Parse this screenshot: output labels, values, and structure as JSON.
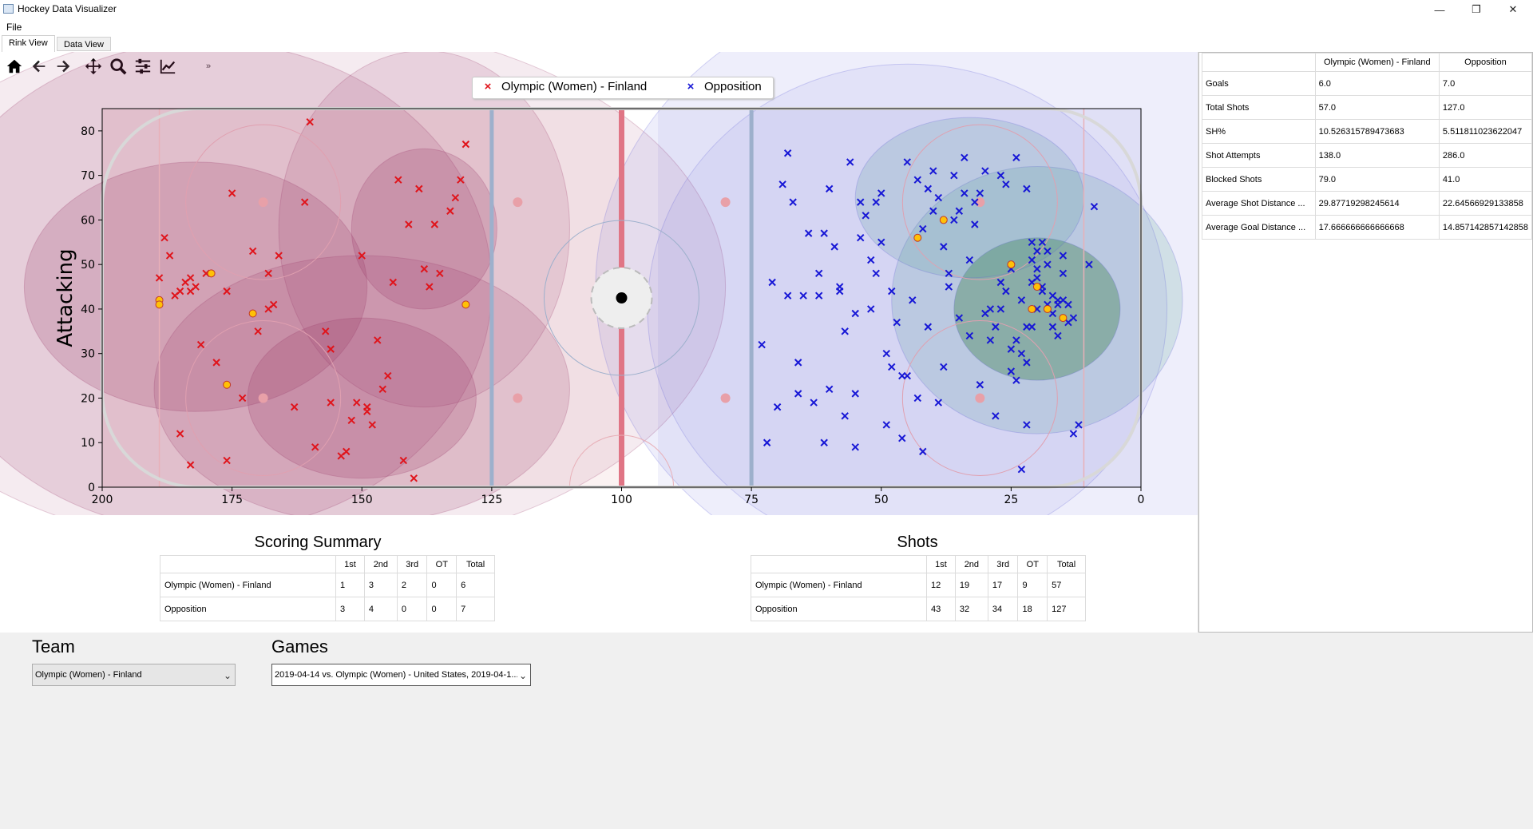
{
  "window": {
    "title": "Hockey Data Visualizer",
    "minimize": "—",
    "restore": "❐",
    "close": "✕"
  },
  "menu": {
    "file": "File"
  },
  "tabs": [
    {
      "label": "Rink View"
    },
    {
      "label": "Data View"
    }
  ],
  "toolbar": {
    "more": "»"
  },
  "legend": {
    "team": "Olympic (Women) - Finland",
    "opposition": "Opposition"
  },
  "colors": {
    "team": "#e0141b",
    "opposition": "#1717d6",
    "goal": "#ffc107"
  },
  "chart_data": {
    "type": "scatter",
    "ylabel": "Attacking",
    "xlabel": "",
    "xlim": [
      200,
      0
    ],
    "ylim": [
      0,
      85
    ],
    "x_ticks": [
      "200",
      "175",
      "150",
      "125",
      "100",
      "75",
      "50",
      "25",
      "0"
    ],
    "y_ticks": [
      "0",
      "10",
      "20",
      "30",
      "40",
      "50",
      "60",
      "70",
      "80"
    ],
    "series": [
      {
        "name": "Olympic (Women) - Finland",
        "color": "#e0141b",
        "x": [
          189,
          187,
          185,
          188,
          186,
          183,
          184,
          183,
          182,
          181,
          180,
          178,
          176,
          175,
          173,
          171,
          170,
          168,
          168,
          167,
          166,
          163,
          161,
          160,
          159,
          157,
          156,
          156,
          154,
          153,
          152,
          151,
          150,
          149,
          149,
          148,
          147,
          146,
          145,
          144,
          143,
          142,
          141,
          140,
          139,
          138,
          137,
          136,
          135,
          133,
          132,
          131,
          130,
          176,
          185,
          183
        ],
        "y": [
          47,
          52,
          44,
          56,
          43,
          47,
          46,
          44,
          45,
          32,
          48,
          28,
          44,
          66,
          20,
          53,
          35,
          48,
          40,
          41,
          52,
          18,
          64,
          82,
          9,
          35,
          31,
          19,
          7,
          8,
          15,
          19,
          52,
          17,
          18,
          14,
          33,
          22,
          25,
          46,
          69,
          6,
          59,
          2,
          67,
          49,
          45,
          59,
          48,
          62,
          65,
          69,
          77,
          6,
          12,
          5
        ],
        "goals": {
          "x": [
            189,
            189,
            179,
            171,
            176,
            130
          ],
          "y": [
            42,
            41,
            48,
            39,
            23,
            41
          ]
        }
      },
      {
        "name": "Opposition",
        "color": "#1717d6",
        "x": [
          70,
          66,
          68,
          72,
          62,
          60,
          61,
          58,
          57,
          55,
          55,
          54,
          52,
          51,
          50,
          49,
          48,
          46,
          45,
          43,
          42,
          41,
          40,
          39,
          38,
          37,
          36,
          35,
          34,
          33,
          32,
          31,
          30,
          29,
          28,
          27,
          26,
          25,
          24,
          23,
          22,
          21,
          20,
          19,
          18,
          17,
          16,
          15,
          14,
          13,
          12,
          10,
          9,
          24,
          22,
          21,
          20,
          19,
          18,
          17,
          16,
          15,
          14,
          13,
          20,
          21,
          22,
          23,
          24,
          25,
          26,
          27,
          28,
          29,
          30,
          31,
          32,
          33,
          34,
          35,
          36,
          37,
          38,
          39,
          40,
          41,
          42,
          43,
          44,
          45,
          46,
          47,
          48,
          49,
          50,
          51,
          52,
          53,
          54,
          55,
          56,
          57,
          58,
          59,
          60,
          61,
          62,
          63,
          64,
          65,
          66,
          67,
          68,
          69,
          71,
          73,
          20,
          18,
          16,
          19,
          17,
          21,
          15,
          22,
          23,
          25,
          27
        ],
        "y": [
          18,
          21,
          43,
          10,
          43,
          22,
          57,
          44,
          16,
          39,
          9,
          56,
          40,
          64,
          55,
          14,
          44,
          25,
          73,
          20,
          8,
          36,
          62,
          19,
          27,
          45,
          60,
          38,
          66,
          34,
          64,
          23,
          71,
          40,
          16,
          70,
          68,
          49,
          33,
          30,
          36,
          51,
          47,
          44,
          50,
          39,
          42,
          52,
          41,
          38,
          14,
          50,
          63,
          74,
          67,
          55,
          49,
          45,
          53,
          43,
          41,
          48,
          37,
          12,
          40,
          36,
          28,
          42,
          24,
          31,
          44,
          46,
          36,
          33,
          39,
          66,
          59,
          51,
          74,
          62,
          70,
          48,
          54,
          65,
          71,
          67,
          58,
          69,
          42,
          25,
          11,
          37,
          27,
          30,
          66,
          48,
          51,
          61,
          64,
          21,
          73,
          35,
          45,
          54,
          67,
          10,
          48,
          19,
          57,
          43,
          28,
          64,
          75,
          68,
          46,
          32,
          53,
          41,
          34,
          55,
          36,
          46,
          42,
          14,
          4,
          26,
          40
        ],
        "goals": {
          "x": [
            43,
            38,
            25,
            20,
            18,
            21,
            15
          ],
          "y": [
            56,
            60,
            50,
            45,
            40,
            40,
            38
          ]
        }
      }
    ]
  },
  "scoring_summary": {
    "title": "Scoring Summary",
    "headers": [
      "",
      "1st",
      "2nd",
      "3rd",
      "OT",
      "Total"
    ],
    "rows": [
      [
        "Olympic (Women) - Finland",
        "1",
        "3",
        "2",
        "0",
        "6"
      ],
      [
        "Opposition",
        "3",
        "4",
        "0",
        "0",
        "7"
      ]
    ]
  },
  "shots_summary": {
    "title": "Shots",
    "headers": [
      "",
      "1st",
      "2nd",
      "3rd",
      "OT",
      "Total"
    ],
    "rows": [
      [
        "Olympic (Women) - Finland",
        "12",
        "19",
        "17",
        "9",
        "57"
      ],
      [
        "Opposition",
        "43",
        "32",
        "34",
        "18",
        "127"
      ]
    ]
  },
  "stats": {
    "headers": [
      "",
      "Olympic (Women) - Finland",
      "Opposition"
    ],
    "rows": [
      [
        "Goals",
        "6.0",
        "7.0"
      ],
      [
        "Total Shots",
        "57.0",
        "127.0"
      ],
      [
        "SH%",
        "10.526315789473683",
        "5.511811023622047"
      ],
      [
        "Shot Attempts",
        "138.0",
        "286.0"
      ],
      [
        "Blocked Shots",
        "79.0",
        "41.0"
      ],
      [
        "Average Shot Distance ...",
        "29.87719298245614",
        "22.64566929133858"
      ],
      [
        "Average Goal Distance ...",
        "17.666666666666668",
        "14.857142857142858"
      ]
    ]
  },
  "team": {
    "label": "Team",
    "selected": "Olympic (Women) - Finland"
  },
  "games": {
    "label": "Games",
    "selected": "2019-04-14 vs. Olympic (Women) - United States, 2019-04-1..."
  }
}
